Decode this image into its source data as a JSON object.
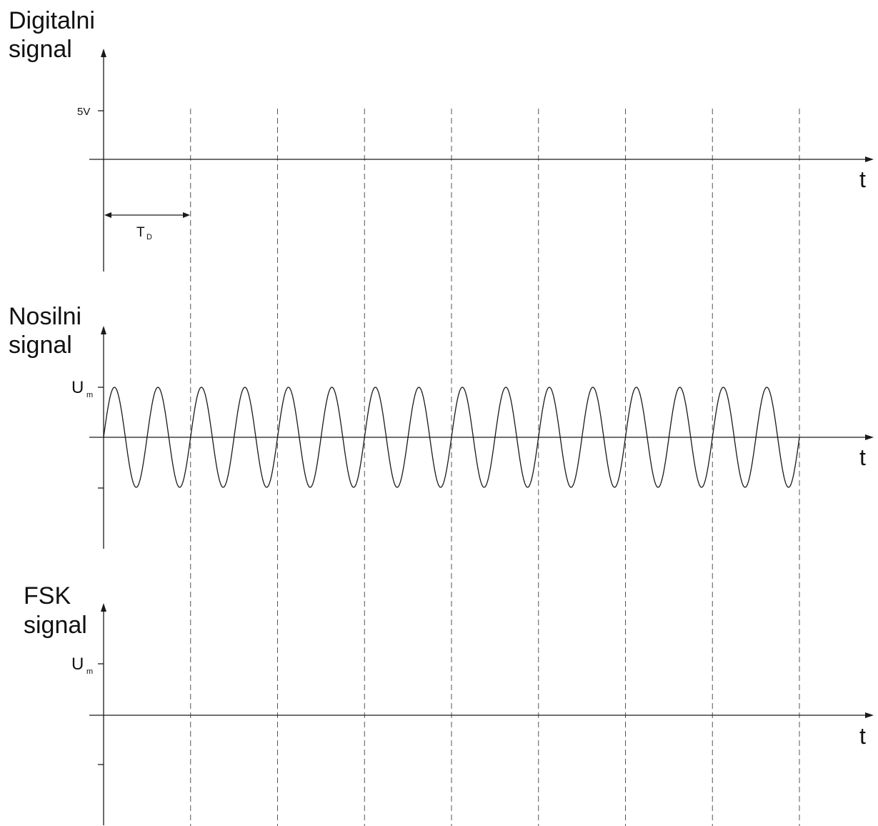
{
  "panels": {
    "digital": {
      "title_line1": "Digitalni",
      "title_line2": "signal",
      "tick_label": "5V",
      "t_axis_label": "t",
      "period_label": "T",
      "period_label_sub": "D"
    },
    "carrier": {
      "title_line1": "Nosilni",
      "title_line2": "signal",
      "tick_label": "U",
      "tick_label_sub": "m",
      "t_axis_label": "t"
    },
    "fsk": {
      "title_line1": "FSK",
      "title_line2": "signal",
      "tick_label": "U",
      "tick_label_sub": "m",
      "t_axis_label": "t"
    }
  },
  "diagram": {
    "bit_intervals": 8,
    "carrier_cycles": 16,
    "line_color": "#1a1a1a",
    "grid_color": "#555555",
    "background": "#ffffff"
  }
}
